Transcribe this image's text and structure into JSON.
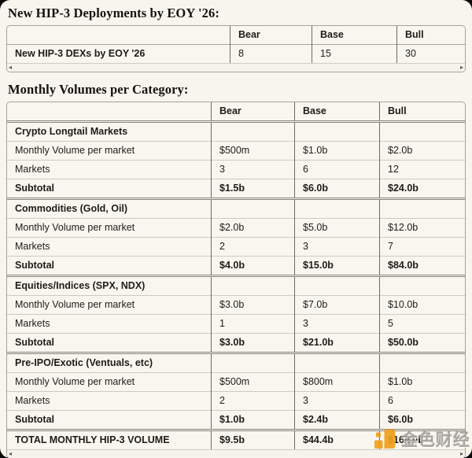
{
  "colors": {
    "page_bg": "#f8f5ee",
    "outer_bg": "#0a0a0a",
    "border_dark": "#6d6a64",
    "border_light": "#cdcac2",
    "logo_orange": "#f0a01d"
  },
  "section1": {
    "heading": "New HIP-3 Deployments by EOY '26:",
    "table": {
      "columns": [
        "",
        "Bear",
        "Base",
        "Bull"
      ],
      "rows": [
        {
          "label": "New HIP-3 DEXs by EOY '26",
          "bear": "8",
          "base": "15",
          "bull": "30"
        }
      ]
    }
  },
  "section2": {
    "heading": "Monthly Volumes per Category:",
    "table": {
      "columns": [
        "",
        "Bear",
        "Base",
        "Bull"
      ],
      "groups": [
        {
          "header": "Crypto Longtail Markets",
          "rows": [
            [
              "Monthly Volume per market",
              "$500m",
              "$1.0b",
              "$2.0b"
            ],
            [
              "Markets",
              "3",
              "6",
              "12"
            ],
            [
              "Subtotal",
              "$1.5b",
              "$6.0b",
              "$24.0b"
            ]
          ]
        },
        {
          "header": "Commodities (Gold, Oil)",
          "rows": [
            [
              "Monthly Volume per market",
              "$2.0b",
              "$5.0b",
              "$12.0b"
            ],
            [
              "Markets",
              "2",
              "3",
              "7"
            ],
            [
              "Subtotal",
              "$4.0b",
              "$15.0b",
              "$84.0b"
            ]
          ]
        },
        {
          "header": "Equities/Indices (SPX, NDX)",
          "rows": [
            [
              "Monthly Volume per market",
              "$3.0b",
              "$7.0b",
              "$10.0b"
            ],
            [
              "Markets",
              "1",
              "3",
              "5"
            ],
            [
              "Subtotal",
              "$3.0b",
              "$21.0b",
              "$50.0b"
            ]
          ]
        },
        {
          "header": "Pre-IPO/Exotic (Ventuals, etc)",
          "rows": [
            [
              "Monthly Volume per market",
              "$500m",
              "$800m",
              "$1.0b"
            ],
            [
              "Markets",
              "2",
              "3",
              "6"
            ],
            [
              "Subtotal",
              "$1.0b",
              "$2.4b",
              "$6.0b"
            ]
          ]
        }
      ],
      "total_row": [
        "TOTAL MONTHLY HIP-3 VOLUME",
        "$9.5b",
        "$44.4b",
        "$164.0b"
      ]
    }
  },
  "ui": {
    "scroll_left": "◂",
    "scroll_right": "▸"
  },
  "watermark": {
    "text": "金色财经"
  }
}
